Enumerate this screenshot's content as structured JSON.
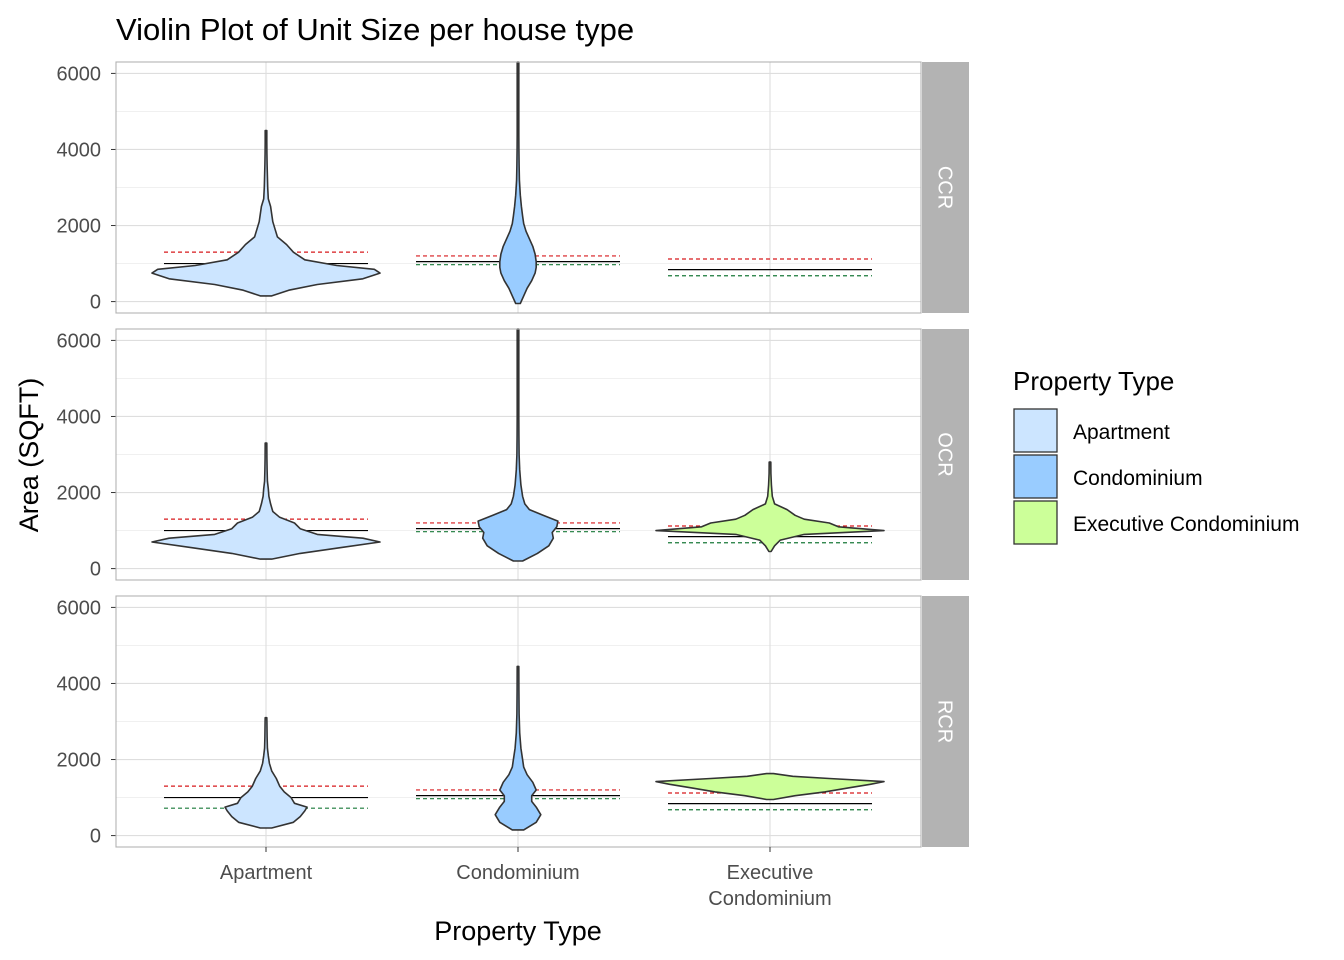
{
  "chart_data": {
    "type": "violin",
    "title": "Violin Plot of Unit Size per house type",
    "xlabel": "Property Type",
    "ylabel": "Area (SQFT)",
    "ylim": [
      -300,
      6300
    ],
    "yticks": [
      0,
      2000,
      4000,
      6000
    ],
    "categories": [
      "Apartment",
      "Condominium",
      "Executive Condominium"
    ],
    "category_tick_lines": [
      [
        "Apartment"
      ],
      [
        "Condominium"
      ],
      [
        "Executive",
        "Condominium"
      ]
    ],
    "facets": [
      "CCR",
      "OCR",
      "RCR"
    ],
    "grid": true,
    "legend": {
      "title": "Property Type",
      "placement": "right",
      "entries": [
        "Apartment",
        "Condominium",
        "Executive Condominium"
      ]
    },
    "colors": {
      "Apartment": "#cce5ff",
      "Condominium": "#99ccff",
      "Executive Condominium": "#ccff99",
      "outline": "#333333",
      "median_line": "#000000",
      "upper_ref_line": "#d7191c",
      "lower_ref_line": "#1a7a3a",
      "strip": "#b3b3b3",
      "strip_text": "#ffffff"
    },
    "reference_lines": {
      "CCR": {
        "Apartment": {
          "median": 1000,
          "upper": 1300,
          "lower": 720
        },
        "Condominium": {
          "median": 1050,
          "upper": 1200,
          "lower": 970
        },
        "Executive Condominium": {
          "median": 840,
          "upper": 1120,
          "lower": 680
        }
      },
      "OCR": {
        "Apartment": {
          "median": 1000,
          "upper": 1300,
          "lower": 720
        },
        "Condominium": {
          "median": 1050,
          "upper": 1200,
          "lower": 970
        },
        "Executive Condominium": {
          "median": 840,
          "upper": 1120,
          "lower": 680
        }
      },
      "RCR": {
        "Apartment": {
          "median": 1000,
          "upper": 1300,
          "lower": 720
        },
        "Condominium": {
          "median": 1050,
          "upper": 1200,
          "lower": 970
        },
        "Executive Condominium": {
          "median": 840,
          "upper": 1120,
          "lower": 680
        }
      }
    },
    "violins": {
      "CCR": {
        "Apartment": [
          [
            150,
            0.05
          ],
          [
            300,
            0.2
          ],
          [
            450,
            0.45
          ],
          [
            600,
            0.85
          ],
          [
            750,
            1.0
          ],
          [
            850,
            0.95
          ],
          [
            950,
            0.62
          ],
          [
            1100,
            0.34
          ],
          [
            1300,
            0.24
          ],
          [
            1500,
            0.18
          ],
          [
            1700,
            0.1
          ],
          [
            1900,
            0.08
          ],
          [
            2100,
            0.06
          ],
          [
            2300,
            0.05
          ],
          [
            2500,
            0.04
          ],
          [
            2700,
            0.02
          ],
          [
            3000,
            0.015
          ],
          [
            3300,
            0.012
          ],
          [
            3600,
            0.01
          ],
          [
            3900,
            0.008
          ],
          [
            4200,
            0.006
          ],
          [
            4500,
            0.004
          ]
        ],
        "Condominium": [
          [
            -50,
            0.02
          ],
          [
            150,
            0.05
          ],
          [
            350,
            0.08
          ],
          [
            550,
            0.12
          ],
          [
            750,
            0.15
          ],
          [
            900,
            0.16
          ],
          [
            1050,
            0.16
          ],
          [
            1250,
            0.15
          ],
          [
            1450,
            0.13
          ],
          [
            1650,
            0.1
          ],
          [
            1850,
            0.07
          ],
          [
            2050,
            0.05
          ],
          [
            2250,
            0.04
          ],
          [
            2500,
            0.03
          ],
          [
            2800,
            0.02
          ],
          [
            3200,
            0.012
          ],
          [
            3600,
            0.01
          ],
          [
            4000,
            0.008
          ],
          [
            4400,
            0.006
          ],
          [
            4800,
            0.006
          ],
          [
            5200,
            0.004
          ],
          [
            5700,
            0.003
          ],
          [
            6300,
            0.003
          ]
        ],
        "Executive Condominium": []
      },
      "OCR": {
        "Apartment": [
          [
            250,
            0.05
          ],
          [
            400,
            0.3
          ],
          [
            550,
            0.65
          ],
          [
            700,
            1.0
          ],
          [
            800,
            0.85
          ],
          [
            900,
            0.45
          ],
          [
            1050,
            0.3
          ],
          [
            1200,
            0.25
          ],
          [
            1350,
            0.12
          ],
          [
            1500,
            0.06
          ],
          [
            1700,
            0.04
          ],
          [
            1900,
            0.025
          ],
          [
            2100,
            0.02
          ],
          [
            2300,
            0.012
          ],
          [
            2600,
            0.01
          ],
          [
            2900,
            0.008
          ],
          [
            3300,
            0.005
          ]
        ],
        "Condominium": [
          [
            200,
            0.04
          ],
          [
            400,
            0.17
          ],
          [
            600,
            0.27
          ],
          [
            800,
            0.31
          ],
          [
            950,
            0.3
          ],
          [
            1100,
            0.34
          ],
          [
            1250,
            0.35
          ],
          [
            1400,
            0.22
          ],
          [
            1550,
            0.1
          ],
          [
            1700,
            0.06
          ],
          [
            1900,
            0.04
          ],
          [
            2200,
            0.025
          ],
          [
            2600,
            0.015
          ],
          [
            3000,
            0.01
          ],
          [
            3500,
            0.008
          ],
          [
            4000,
            0.006
          ],
          [
            5000,
            0.004
          ],
          [
            6300,
            0.003
          ]
        ],
        "Executive Condominium": [
          [
            450,
            0.01
          ],
          [
            600,
            0.04
          ],
          [
            750,
            0.09
          ],
          [
            900,
            0.3
          ],
          [
            1000,
            1.0
          ],
          [
            1100,
            0.6
          ],
          [
            1200,
            0.52
          ],
          [
            1300,
            0.3
          ],
          [
            1400,
            0.22
          ],
          [
            1550,
            0.15
          ],
          [
            1700,
            0.04
          ],
          [
            1900,
            0.02
          ],
          [
            2200,
            0.012
          ],
          [
            2500,
            0.008
          ],
          [
            2800,
            0.006
          ]
        ]
      },
      "RCR": {
        "Apartment": [
          [
            200,
            0.05
          ],
          [
            350,
            0.24
          ],
          [
            500,
            0.3
          ],
          [
            650,
            0.34
          ],
          [
            750,
            0.36
          ],
          [
            850,
            0.25
          ],
          [
            1000,
            0.22
          ],
          [
            1150,
            0.16
          ],
          [
            1300,
            0.12
          ],
          [
            1500,
            0.09
          ],
          [
            1700,
            0.05
          ],
          [
            1900,
            0.03
          ],
          [
            2100,
            0.02
          ],
          [
            2300,
            0.012
          ],
          [
            2600,
            0.01
          ],
          [
            3000,
            0.008
          ],
          [
            3100,
            0.005
          ]
        ],
        "Condominium": [
          [
            150,
            0.05
          ],
          [
            350,
            0.16
          ],
          [
            550,
            0.2
          ],
          [
            750,
            0.16
          ],
          [
            900,
            0.12
          ],
          [
            1050,
            0.12
          ],
          [
            1200,
            0.16
          ],
          [
            1400,
            0.13
          ],
          [
            1600,
            0.08
          ],
          [
            1800,
            0.05
          ],
          [
            2000,
            0.04
          ],
          [
            2300,
            0.025
          ],
          [
            2700,
            0.015
          ],
          [
            3200,
            0.01
          ],
          [
            3800,
            0.008
          ],
          [
            4450,
            0.005
          ]
        ],
        "Executive Condominium": [
          [
            950,
            0.03
          ],
          [
            1050,
            0.22
          ],
          [
            1150,
            0.48
          ],
          [
            1250,
            0.68
          ],
          [
            1350,
            0.88
          ],
          [
            1420,
            1.0
          ],
          [
            1500,
            0.52
          ],
          [
            1560,
            0.2
          ],
          [
            1630,
            0.03
          ]
        ]
      }
    }
  }
}
